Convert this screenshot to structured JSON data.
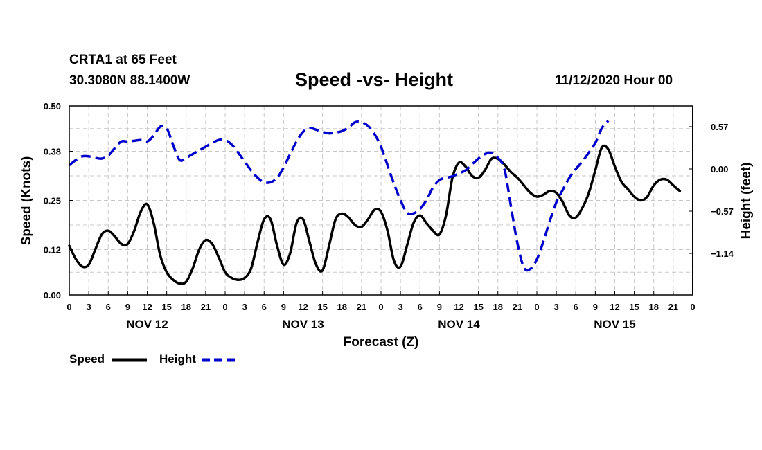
{
  "header": {
    "station": "CRTA1 at 65 Feet",
    "coords": "30.3080N 88.1400W",
    "title": "Speed -vs- Height",
    "datetime": "11/12/2020 Hour 00"
  },
  "chart_data": {
    "type": "line",
    "title": "Speed -vs- Height",
    "xlabel": "Forecast (Z)",
    "ylabel": "Speed (Knots)",
    "y2label": "Height (feet)",
    "xlim": [
      0,
      96
    ],
    "ylim": [
      0,
      0.5
    ],
    "y2lim": [
      -1.7,
      0.85
    ],
    "y_ticks": [
      "0.00",
      "0.12",
      "0.25",
      "0.38",
      "0.50"
    ],
    "y2_ticks": [
      "0.57",
      "0.00",
      "−0.57",
      "−1.14"
    ],
    "y2_tick_values": [
      0.57,
      0.0,
      -0.57,
      -1.14
    ],
    "x_ticks": [
      "0",
      "3",
      "6",
      "9",
      "12",
      "15",
      "18",
      "21",
      "0",
      "3",
      "6",
      "9",
      "12",
      "15",
      "18",
      "21",
      "0",
      "3",
      "6",
      "9",
      "12",
      "15",
      "18",
      "21",
      "0",
      "3",
      "6",
      "9",
      "12",
      "15",
      "18",
      "21",
      "0"
    ],
    "day_labels": [
      {
        "label": "NOV 12",
        "hour": 12
      },
      {
        "label": "NOV 13",
        "hour": 36
      },
      {
        "label": "NOV 14",
        "hour": 60
      },
      {
        "label": "NOV 15",
        "hour": 84
      }
    ],
    "grid": true,
    "legend_position": "bottom-left",
    "series": [
      {
        "name": "Speed",
        "axis": "left",
        "color": "#000000",
        "dash": "solid",
        "points": [
          [
            0,
            0.13
          ],
          [
            1,
            0.095
          ],
          [
            2,
            0.075
          ],
          [
            3,
            0.08
          ],
          [
            4,
            0.12
          ],
          [
            5,
            0.16
          ],
          [
            6,
            0.17
          ],
          [
            7,
            0.155
          ],
          [
            8,
            0.135
          ],
          [
            9,
            0.135
          ],
          [
            10,
            0.17
          ],
          [
            11,
            0.22
          ],
          [
            12,
            0.24
          ],
          [
            13,
            0.19
          ],
          [
            14,
            0.105
          ],
          [
            15,
            0.06
          ],
          [
            16,
            0.04
          ],
          [
            17,
            0.03
          ],
          [
            18,
            0.035
          ],
          [
            19,
            0.07
          ],
          [
            20,
            0.12
          ],
          [
            21,
            0.145
          ],
          [
            22,
            0.135
          ],
          [
            23,
            0.1
          ],
          [
            24,
            0.06
          ],
          [
            25,
            0.045
          ],
          [
            26,
            0.04
          ],
          [
            27,
            0.045
          ],
          [
            28,
            0.07
          ],
          [
            29,
            0.14
          ],
          [
            30,
            0.2
          ],
          [
            31,
            0.2
          ],
          [
            32,
            0.13
          ],
          [
            33,
            0.08
          ],
          [
            34,
            0.11
          ],
          [
            35,
            0.19
          ],
          [
            36,
            0.2
          ],
          [
            37,
            0.14
          ],
          [
            38,
            0.08
          ],
          [
            39,
            0.065
          ],
          [
            40,
            0.13
          ],
          [
            41,
            0.2
          ],
          [
            42,
            0.215
          ],
          [
            43,
            0.205
          ],
          [
            44,
            0.185
          ],
          [
            45,
            0.18
          ],
          [
            46,
            0.2
          ],
          [
            47,
            0.225
          ],
          [
            48,
            0.22
          ],
          [
            49,
            0.17
          ],
          [
            50,
            0.09
          ],
          [
            51,
            0.075
          ],
          [
            52,
            0.13
          ],
          [
            53,
            0.19
          ],
          [
            54,
            0.21
          ],
          [
            55,
            0.19
          ],
          [
            56,
            0.17
          ],
          [
            57,
            0.16
          ],
          [
            58,
            0.21
          ],
          [
            59,
            0.31
          ],
          [
            60,
            0.35
          ],
          [
            61,
            0.34
          ],
          [
            62,
            0.315
          ],
          [
            63,
            0.31
          ],
          [
            64,
            0.33
          ],
          [
            65,
            0.36
          ],
          [
            66,
            0.36
          ],
          [
            67,
            0.345
          ],
          [
            68,
            0.325
          ],
          [
            69,
            0.31
          ],
          [
            70,
            0.29
          ],
          [
            71,
            0.27
          ],
          [
            72,
            0.26
          ],
          [
            73,
            0.265
          ],
          [
            74,
            0.275
          ],
          [
            75,
            0.27
          ],
          [
            76,
            0.245
          ],
          [
            77,
            0.21
          ],
          [
            78,
            0.205
          ],
          [
            79,
            0.23
          ],
          [
            80,
            0.27
          ],
          [
            81,
            0.33
          ],
          [
            82,
            0.39
          ],
          [
            83,
            0.385
          ],
          [
            84,
            0.34
          ],
          [
            85,
            0.3
          ],
          [
            86,
            0.28
          ],
          [
            87,
            0.26
          ],
          [
            88,
            0.25
          ],
          [
            89,
            0.26
          ],
          [
            90,
            0.29
          ],
          [
            91,
            0.305
          ],
          [
            92,
            0.305
          ],
          [
            93,
            0.29
          ],
          [
            94,
            0.275
          ]
        ]
      },
      {
        "name": "Height",
        "axis": "right",
        "color": "#0000cc",
        "dash": "dashed",
        "points": [
          [
            0,
            0.05
          ],
          [
            1,
            0.12
          ],
          [
            2,
            0.17
          ],
          [
            3,
            0.17
          ],
          [
            4,
            0.15
          ],
          [
            5,
            0.14
          ],
          [
            6,
            0.18
          ],
          [
            7,
            0.28
          ],
          [
            8,
            0.37
          ],
          [
            9,
            0.37
          ],
          [
            10,
            0.38
          ],
          [
            11,
            0.39
          ],
          [
            12,
            0.37
          ],
          [
            13,
            0.45
          ],
          [
            14,
            0.57
          ],
          [
            15,
            0.55
          ],
          [
            16,
            0.32
          ],
          [
            17,
            0.12
          ],
          [
            18,
            0.15
          ],
          [
            19,
            0.2
          ],
          [
            20,
            0.25
          ],
          [
            21,
            0.3
          ],
          [
            22,
            0.35
          ],
          [
            23,
            0.39
          ],
          [
            24,
            0.39
          ],
          [
            25,
            0.33
          ],
          [
            26,
            0.22
          ],
          [
            27,
            0.1
          ],
          [
            28,
            -0.02
          ],
          [
            29,
            -0.12
          ],
          [
            30,
            -0.18
          ],
          [
            31,
            -0.18
          ],
          [
            32,
            -0.12
          ],
          [
            33,
            0.02
          ],
          [
            34,
            0.2
          ],
          [
            35,
            0.37
          ],
          [
            36,
            0.5
          ],
          [
            37,
            0.55
          ],
          [
            38,
            0.53
          ],
          [
            39,
            0.5
          ],
          [
            40,
            0.48
          ],
          [
            41,
            0.49
          ],
          [
            42,
            0.51
          ],
          [
            43,
            0.56
          ],
          [
            44,
            0.63
          ],
          [
            45,
            0.63
          ],
          [
            46,
            0.58
          ],
          [
            47,
            0.47
          ],
          [
            48,
            0.3
          ],
          [
            49,
            0.05
          ],
          [
            50,
            -0.2
          ],
          [
            51,
            -0.42
          ],
          [
            52,
            -0.59
          ],
          [
            53,
            -0.6
          ],
          [
            54,
            -0.54
          ],
          [
            55,
            -0.42
          ],
          [
            56,
            -0.25
          ],
          [
            57,
            -0.15
          ],
          [
            58,
            -0.12
          ],
          [
            59,
            -0.1
          ],
          [
            60,
            -0.06
          ],
          [
            61,
            -0.02
          ],
          [
            62,
            0.06
          ],
          [
            63,
            0.14
          ],
          [
            64,
            0.2
          ],
          [
            65,
            0.22
          ],
          [
            66,
            0.15
          ],
          [
            67,
            0.0
          ],
          [
            68,
            -0.5
          ],
          [
            69,
            -1.0
          ],
          [
            70,
            -1.33
          ],
          [
            71,
            -1.35
          ],
          [
            72,
            -1.22
          ],
          [
            73,
            -0.98
          ],
          [
            74,
            -0.7
          ],
          [
            75,
            -0.45
          ],
          [
            76,
            -0.28
          ],
          [
            77,
            -0.12
          ],
          [
            78,
            0.0
          ],
          [
            79,
            0.1
          ],
          [
            80,
            0.22
          ],
          [
            81,
            0.35
          ],
          [
            82,
            0.55
          ],
          [
            83,
            0.65
          ]
        ]
      }
    ]
  },
  "legend": {
    "speed_label": "Speed",
    "height_label": "Height"
  }
}
